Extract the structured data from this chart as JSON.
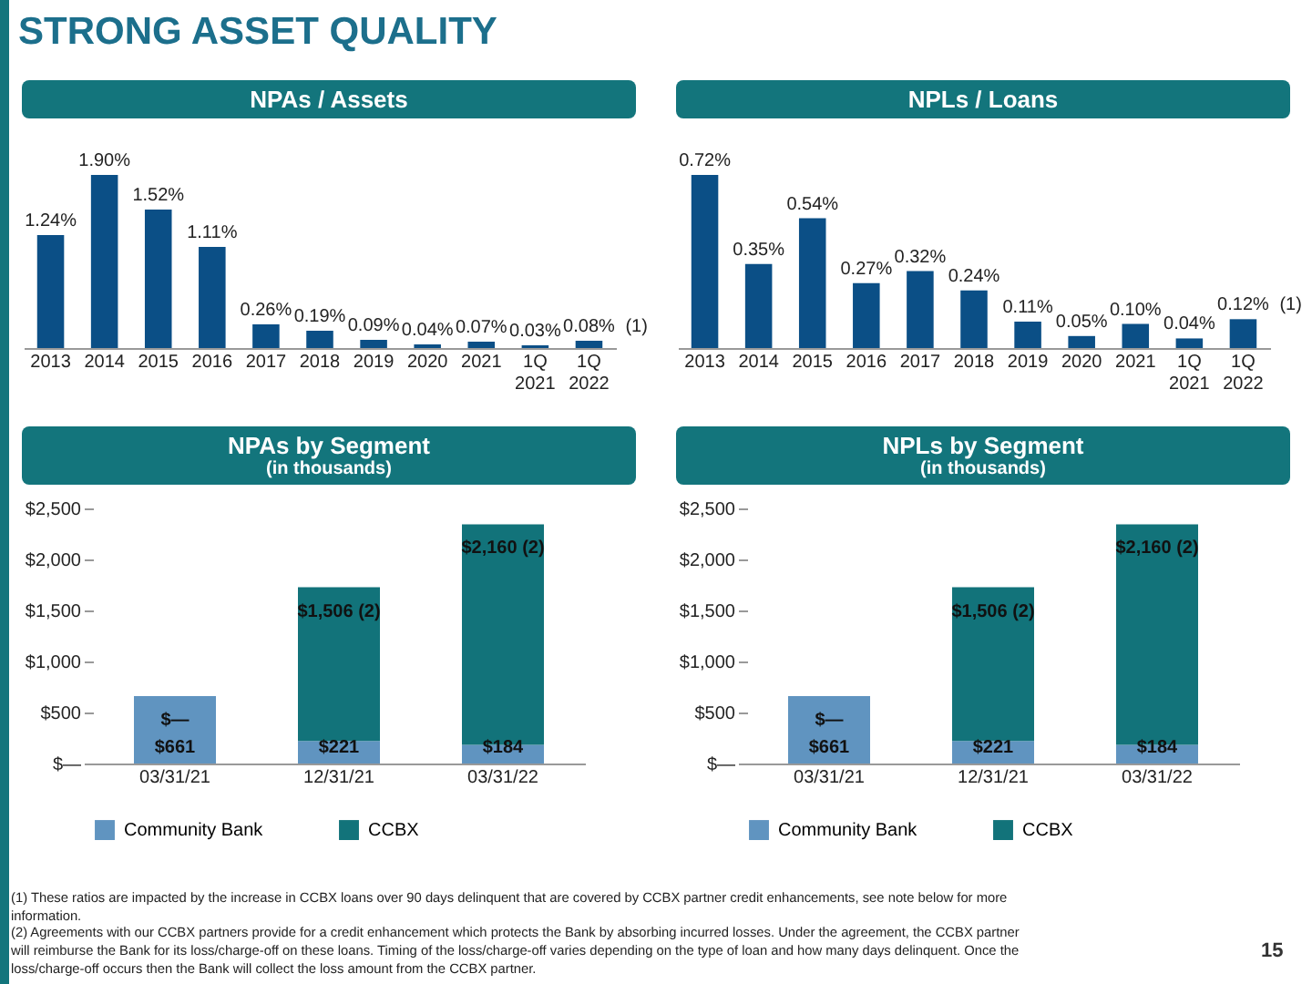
{
  "chart_data": [
    {
      "type": "bar",
      "title": "NPAs / Assets",
      "categories": [
        "2013",
        "2014",
        "2015",
        "2016",
        "2017",
        "2018",
        "2019",
        "2020",
        "2021",
        "1Q 2021",
        "1Q 2022"
      ],
      "values": [
        1.24,
        1.9,
        1.52,
        1.11,
        0.26,
        0.19,
        0.09,
        0.04,
        0.07,
        0.03,
        0.08
      ],
      "value_labels": [
        "1.24%",
        "1.90%",
        "1.52%",
        "1.11%",
        "0.26%",
        "0.19%",
        "0.09%",
        "0.04%",
        "0.07%",
        "0.03%",
        "0.08%"
      ],
      "color": "#0b4f86",
      "tick_labels": "x",
      "annotations": [
        {
          "text": "(1)",
          "x": "1Q 2022",
          "y": 0.08
        }
      ]
    },
    {
      "type": "bar",
      "title": "NPLs / Loans",
      "categories": [
        "2013",
        "2014",
        "2015",
        "2016",
        "2017",
        "2018",
        "2019",
        "2020",
        "2021",
        "1Q 2021",
        "1Q 2022"
      ],
      "values": [
        0.72,
        0.35,
        0.54,
        0.27,
        0.32,
        0.24,
        0.11,
        0.05,
        0.1,
        0.04,
        0.12
      ],
      "value_labels": [
        "0.72%",
        "0.35%",
        "0.54%",
        "0.27%",
        "0.32%",
        "0.24%",
        "0.11%",
        "0.05%",
        "0.10%",
        "0.04%",
        "0.12%"
      ],
      "color": "#0b4f86",
      "tick_labels": "x",
      "annotations": [
        {
          "text": "(1)",
          "x": "1Q 2022",
          "y": 0.12
        }
      ]
    },
    {
      "type": "bar",
      "title": "NPAs by Segment",
      "subtitle": "(in thousands)",
      "categories": [
        "03/31/21",
        "12/31/21",
        "03/31/22"
      ],
      "stacked": true,
      "legend": "bottom",
      "ylim": [
        0,
        2500
      ],
      "yticks": [
        {
          "value": 0,
          "label": "$—"
        },
        {
          "value": 500,
          "label": "$500"
        },
        {
          "value": 1000,
          "label": "$1,000"
        },
        {
          "value": 1500,
          "label": "$1,500"
        },
        {
          "value": 2000,
          "label": "$2,000"
        },
        {
          "value": 2500,
          "label": "$2,500"
        }
      ],
      "series": [
        {
          "name": "Community Bank",
          "color": "#6094c0",
          "values": [
            661,
            221,
            184
          ],
          "value_labels": [
            "$661",
            "$221",
            "$184"
          ]
        },
        {
          "name": "CCBX",
          "color": "#12737a",
          "values": [
            0,
            1506,
            2160
          ],
          "value_labels": [
            "$—",
            "$1,506 (2)",
            "$2,160 (2)"
          ]
        }
      ]
    },
    {
      "type": "bar",
      "title": "NPLs by Segment",
      "subtitle": "(in thousands)",
      "categories": [
        "03/31/21",
        "12/31/21",
        "03/31/22"
      ],
      "stacked": true,
      "legend": "bottom",
      "ylim": [
        0,
        2500
      ],
      "yticks": [
        {
          "value": 0,
          "label": "$—"
        },
        {
          "value": 500,
          "label": "$500"
        },
        {
          "value": 1000,
          "label": "$1,000"
        },
        {
          "value": 1500,
          "label": "$1,500"
        },
        {
          "value": 2000,
          "label": "$2,000"
        },
        {
          "value": 2500,
          "label": "$2,500"
        }
      ],
      "series": [
        {
          "name": "Community Bank",
          "color": "#6094c0",
          "values": [
            661,
            221,
            184
          ],
          "value_labels": [
            "$661",
            "$221",
            "$184"
          ]
        },
        {
          "name": "CCBX",
          "color": "#12737a",
          "values": [
            0,
            1506,
            2160
          ],
          "value_labels": [
            "$—",
            "$1,506 (2)",
            "$2,160 (2)"
          ]
        }
      ]
    },
    {
      "type": "other",
      "title": "STRONG ASSET QUALITY",
      "annotations": [
        "(1) These ratios are impacted by the increase in CCBX loans over 90 days delinquent that are covered by CCBX partner credit enhancements, see note below for more information.",
        "(2)  Agreements with our CCBX partners provide for a credit enhancement which protects the Bank by absorbing incurred losses. Under the agreement, the CCBX partner will reimburse the Bank for its loss/charge-off on these loans.  Timing of the loss/charge-off varies depending on the type of loan and how many days delinquent. Once the loss/charge-off occurs then the Bank will collect the loss amount from the CCBX partner.",
        "15"
      ]
    }
  ]
}
